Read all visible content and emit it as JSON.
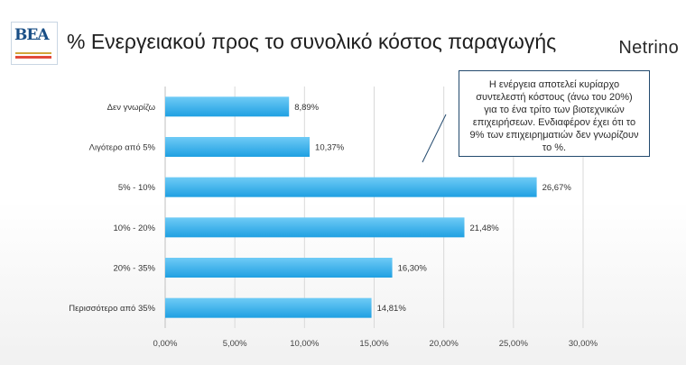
{
  "header": {
    "title": "% Ενεργειακού προς το συνολικό κόστος παραγωγής",
    "brand": "Netrino",
    "logo_text": "ΒΕΑ"
  },
  "callout": {
    "text": "Η ενέργεια αποτελεί κυρίαρχο συντελεστή κόστους (άνω του 20%) για το ένα τρίτο των βιοτεχνικών επιχειρήσεων. Ενδιαφέρον έχει ότι το 9% των επιχειρηματιών δεν γνωρίζουν το %."
  },
  "colors": {
    "bar": "#29a9ea",
    "bar_light": "#63c6f5",
    "grid": "#d9d9d9",
    "callout_border": "#234a6e"
  },
  "chart_data": {
    "type": "bar",
    "orientation": "horizontal",
    "categories": [
      "Δεν γνωρίζω",
      "Λιγότερο από 5%",
      "5% - 10%",
      "10% - 20%",
      "20% - 35%",
      "Περισσότερο από 35%"
    ],
    "values": [
      8.89,
      10.37,
      26.67,
      21.48,
      16.3,
      14.81
    ],
    "value_labels": [
      "8,89%",
      "10,37%",
      "26,67%",
      "21,48%",
      "16,30%",
      "14,81%"
    ],
    "xlim": [
      0,
      30
    ],
    "xticks": [
      0,
      5,
      10,
      15,
      20,
      25,
      30
    ],
    "xtick_labels": [
      "0,00%",
      "5,00%",
      "10,00%",
      "15,00%",
      "20,00%",
      "25,00%",
      "30,00%"
    ],
    "grid": true,
    "legend": "none"
  }
}
